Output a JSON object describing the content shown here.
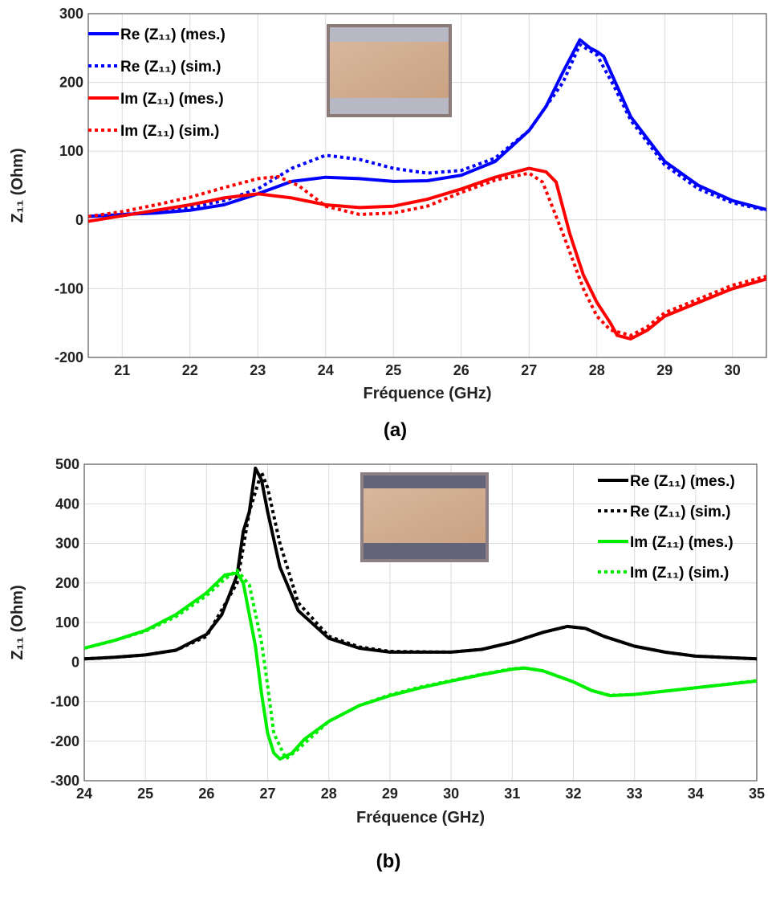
{
  "chart_data": [
    {
      "type": "line",
      "caption": "(a)",
      "xlabel": "Fréquence (GHz)",
      "ylabel": "Z₁₁ (Ohm)",
      "xlim": [
        20.5,
        30.5
      ],
      "xticks": [
        21,
        22,
        23,
        24,
        25,
        26,
        27,
        28,
        29,
        30
      ],
      "ylim": [
        -200,
        300
      ],
      "yticks": [
        -200,
        -100,
        0,
        100,
        200,
        300
      ],
      "grid": true,
      "legend": "upper left",
      "series": [
        {
          "name": "Re (Z₁₁) (mes.)",
          "color": "#0000ff",
          "linestyle": "solid",
          "x": [
            20.5,
            21,
            21.5,
            22,
            22.5,
            23,
            23.5,
            24,
            24.5,
            25,
            25.5,
            26,
            26.5,
            27,
            27.25,
            27.5,
            27.75,
            27.9,
            28,
            28.1,
            28.25,
            28.5,
            29,
            29.5,
            30,
            30.5
          ],
          "values": [
            5,
            8,
            10,
            14,
            22,
            38,
            56,
            62,
            60,
            56,
            57,
            65,
            85,
            130,
            165,
            215,
            262,
            250,
            245,
            238,
            205,
            150,
            85,
            50,
            28,
            15
          ]
        },
        {
          "name": "Re (Z₁₁) (sim.)",
          "color": "#0000ff",
          "linestyle": "dotted",
          "x": [
            20.5,
            21,
            21.5,
            22,
            22.5,
            23,
            23.5,
            24,
            24.5,
            25,
            25.5,
            26,
            26.5,
            27,
            27.5,
            27.75,
            28,
            28.25,
            28.5,
            29,
            29.5,
            30,
            30.5
          ],
          "values": [
            5,
            8,
            12,
            18,
            28,
            45,
            75,
            94,
            88,
            75,
            68,
            72,
            90,
            130,
            200,
            255,
            240,
            195,
            145,
            80,
            45,
            25,
            14
          ]
        },
        {
          "name": "Im (Z₁₁) (mes.)",
          "color": "#ff0000",
          "linestyle": "solid",
          "x": [
            20.5,
            21,
            21.5,
            22,
            22.5,
            23,
            23.5,
            24,
            24.5,
            25,
            25.5,
            26,
            26.5,
            27,
            27.25,
            27.4,
            27.6,
            27.8,
            28,
            28.2,
            28.3,
            28.5,
            28.75,
            29,
            29.5,
            30,
            30.5
          ],
          "values": [
            -2,
            6,
            14,
            22,
            32,
            38,
            32,
            22,
            18,
            20,
            30,
            45,
            62,
            75,
            70,
            55,
            -20,
            -80,
            -120,
            -150,
            -168,
            -173,
            -160,
            -140,
            -120,
            -100,
            -86
          ]
        },
        {
          "name": "Im (Z₁₁) (sim.)",
          "color": "#ff0000",
          "linestyle": "dotted",
          "x": [
            20.5,
            21,
            21.5,
            22,
            22.5,
            23,
            23.3,
            23.6,
            24,
            24.5,
            25,
            25.5,
            26,
            26.5,
            27,
            27.2,
            27.5,
            27.8,
            28,
            28.2,
            28.5,
            28.75,
            29,
            29.5,
            30,
            30.5
          ],
          "values": [
            5,
            12,
            22,
            33,
            47,
            60,
            63,
            50,
            20,
            8,
            10,
            20,
            40,
            58,
            68,
            55,
            -20,
            -100,
            -140,
            -160,
            -168,
            -155,
            -135,
            -115,
            -95,
            -82
          ]
        }
      ]
    },
    {
      "type": "line",
      "caption": "(b)",
      "xlabel": "Fréquence (GHz)",
      "ylabel": "Z₁₁ (Ohm)",
      "xlim": [
        24,
        35
      ],
      "xticks": [
        24,
        25,
        26,
        27,
        28,
        29,
        30,
        31,
        32,
        33,
        34,
        35
      ],
      "ylim": [
        -300,
        500
      ],
      "yticks": [
        -300,
        -200,
        -100,
        0,
        100,
        200,
        300,
        400,
        500
      ],
      "grid": true,
      "legend": "upper right",
      "series": [
        {
          "name": "Re (Z₁₁) (mes.)",
          "color": "#000000",
          "linestyle": "solid",
          "x": [
            24,
            24.5,
            25,
            25.5,
            26,
            26.25,
            26.5,
            26.6,
            26.7,
            26.8,
            26.9,
            27,
            27.2,
            27.5,
            28,
            28.5,
            29,
            30,
            30.5,
            31,
            31.5,
            31.9,
            32.2,
            32.5,
            33,
            33.5,
            34,
            35
          ],
          "values": [
            8,
            12,
            18,
            30,
            70,
            120,
            220,
            330,
            380,
            490,
            460,
            380,
            240,
            130,
            60,
            35,
            25,
            25,
            32,
            50,
            75,
            90,
            85,
            65,
            40,
            25,
            15,
            8
          ]
        },
        {
          "name": "Re (Z₁₁) (sim.)",
          "color": "#000000",
          "linestyle": "dotted",
          "x": [
            24,
            24.5,
            25,
            25.5,
            26,
            26.5,
            26.7,
            26.9,
            27,
            27.2,
            27.5,
            28,
            28.5,
            29,
            30,
            30.5,
            31,
            31.5,
            31.9,
            32.2,
            32.5,
            33,
            33.5,
            34,
            35
          ],
          "values": [
            8,
            12,
            18,
            30,
            65,
            200,
            380,
            480,
            440,
            300,
            150,
            65,
            38,
            27,
            25,
            32,
            50,
            75,
            90,
            85,
            65,
            40,
            25,
            15,
            8
          ]
        },
        {
          "name": "Im (Z₁₁) (mes.)",
          "color": "#00ee00",
          "linestyle": "solid",
          "x": [
            24,
            24.5,
            25,
            25.5,
            26,
            26.3,
            26.5,
            26.6,
            26.8,
            26.9,
            27,
            27.1,
            27.2,
            27.4,
            27.6,
            28,
            28.5,
            29,
            29.5,
            30,
            30.5,
            31,
            31.2,
            31.5,
            32,
            32.3,
            32.6,
            33,
            34,
            35
          ],
          "values": [
            35,
            55,
            80,
            120,
            175,
            220,
            225,
            200,
            40,
            -80,
            -180,
            -230,
            -245,
            -230,
            -195,
            -150,
            -110,
            -85,
            -65,
            -48,
            -32,
            -18,
            -15,
            -22,
            -50,
            -72,
            -85,
            -82,
            -65,
            -48
          ]
        },
        {
          "name": "Im (Z₁₁) (sim.)",
          "color": "#00ee00",
          "linestyle": "dotted",
          "x": [
            24,
            24.5,
            25,
            25.5,
            26,
            26.3,
            26.5,
            26.7,
            26.9,
            27,
            27.1,
            27.3,
            27.5,
            28,
            28.5,
            29,
            29.5,
            30,
            30.5,
            31,
            31.2,
            31.5,
            32,
            32.3,
            32.6,
            33,
            34,
            35
          ],
          "values": [
            35,
            55,
            78,
            115,
            168,
            210,
            232,
            195,
            50,
            -60,
            -180,
            -245,
            -220,
            -150,
            -110,
            -83,
            -63,
            -47,
            -31,
            -17,
            -15,
            -22,
            -50,
            -72,
            -84,
            -82,
            -65,
            -47
          ]
        }
      ]
    }
  ]
}
